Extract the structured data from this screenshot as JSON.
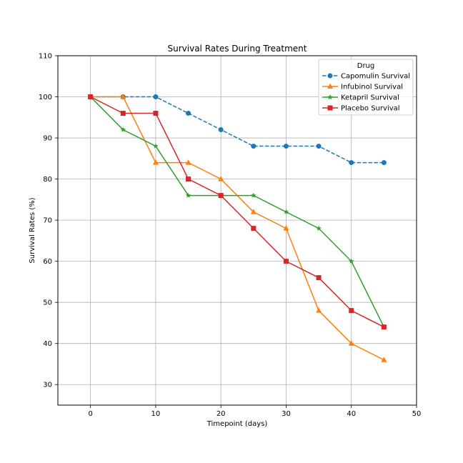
{
  "chart_data": {
    "type": "line",
    "title": "Survival Rates During Treatment",
    "xlabel": "Timepoint (days)",
    "ylabel": "Survival Rates (%)",
    "xlim": [
      -5,
      50
    ],
    "ylim": [
      25,
      110
    ],
    "xticks": [
      0,
      10,
      20,
      30,
      40,
      50
    ],
    "yticks": [
      30,
      40,
      50,
      60,
      70,
      80,
      90,
      100,
      110
    ],
    "grid": true,
    "legend": {
      "title": "Drug",
      "placement": "top-right"
    },
    "x": [
      0,
      5,
      10,
      15,
      20,
      25,
      30,
      35,
      40,
      45
    ],
    "series": [
      {
        "name": "Capomulin Survival",
        "color": "#1f77b4",
        "marker": "circle",
        "linestyle": "dashed",
        "values": [
          100,
          100,
          100,
          96,
          92,
          88,
          88,
          88,
          84,
          84
        ]
      },
      {
        "name": "Infubinol Survival",
        "color": "#ff7f0e",
        "marker": "triangle",
        "linestyle": "solid",
        "values": [
          100,
          100,
          84,
          84,
          80,
          72,
          68,
          48,
          40,
          36
        ]
      },
      {
        "name": "Ketapril Survival",
        "color": "#2ca02c",
        "marker": "star",
        "linestyle": "solid",
        "values": [
          100,
          92,
          88,
          76,
          76,
          76,
          72,
          68,
          60,
          44
        ]
      },
      {
        "name": "Placebo Survival",
        "color": "#d62728",
        "marker": "square",
        "linestyle": "solid",
        "values": [
          100,
          96,
          96,
          80,
          76,
          68,
          60,
          56,
          48,
          44
        ]
      }
    ]
  }
}
